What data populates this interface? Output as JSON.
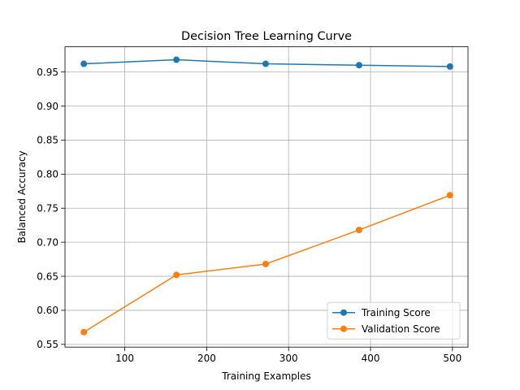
{
  "chart_data": {
    "type": "line",
    "title": "Decision Tree Learning Curve",
    "xlabel": "Training Examples",
    "ylabel": "Balanced Accuracy",
    "x": [
      50,
      163,
      272,
      386,
      497
    ],
    "xlim": [
      27,
      519
    ],
    "ylim": [
      0.546,
      0.987
    ],
    "xticks": [
      100,
      200,
      300,
      400,
      500
    ],
    "xtick_labels": [
      "100",
      "200",
      "300",
      "400",
      "500"
    ],
    "yticks": [
      0.55,
      0.6,
      0.65,
      0.7,
      0.75,
      0.8,
      0.85,
      0.9,
      0.95
    ],
    "ytick_labels": [
      "0.55",
      "0.60",
      "0.65",
      "0.70",
      "0.75",
      "0.80",
      "0.85",
      "0.90",
      "0.95"
    ],
    "grid": true,
    "legend": "lower-right",
    "series": [
      {
        "name": "Training Score",
        "color": "#1f77b4",
        "values": [
          0.962,
          0.968,
          0.962,
          0.96,
          0.958
        ]
      },
      {
        "name": "Validation Score",
        "color": "#ff7f0e",
        "values": [
          0.568,
          0.652,
          0.668,
          0.718,
          0.769
        ]
      }
    ]
  }
}
